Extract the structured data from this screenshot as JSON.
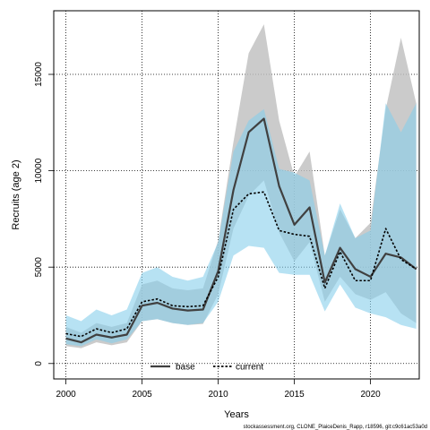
{
  "chart_data": {
    "type": "line",
    "xlabel": "Years",
    "ylabel": "Recruits (age 2)",
    "xlim": [
      1999.2,
      2023.2
    ],
    "ylim": [
      -800,
      18300
    ],
    "x_ticks": [
      "2000",
      "2005",
      "2010",
      "2015",
      "2020"
    ],
    "x_tick_values": [
      2000,
      2005,
      2010,
      2015,
      2020
    ],
    "y_ticks": [
      "0",
      "5000",
      "10000",
      "15000"
    ],
    "y_tick_values": [
      0,
      5000,
      10000,
      15000
    ],
    "grid": true,
    "legend_position": "bottom-center",
    "footer": "stockassessment.org, CLONE_PlaiceDenis_Rapp, r18596, git:c9c61ac53a0d",
    "years": [
      2000,
      2001,
      2002,
      2003,
      2004,
      2005,
      2006,
      2007,
      2008,
      2009,
      2010,
      2011,
      2012,
      2013,
      2014,
      2015,
      2016,
      2017,
      2018,
      2019,
      2020,
      2021,
      2022,
      2023
    ],
    "series": [
      {
        "name": "base",
        "color": "#404040",
        "band_color": "#bebebe",
        "line_style": "solid",
        "values": [
          1300,
          1100,
          1500,
          1350,
          1500,
          3000,
          3150,
          2850,
          2750,
          2800,
          4800,
          9000,
          12000,
          12700,
          9200,
          7200,
          8100,
          4200,
          6000,
          4900,
          4500,
          5700,
          5500,
          4900
        ],
        "lower": [
          900,
          800,
          1100,
          950,
          1100,
          2200,
          2300,
          2100,
          2000,
          2050,
          3600,
          7000,
          8700,
          9500,
          6800,
          5300,
          6300,
          3200,
          4500,
          3600,
          3300,
          3700,
          2600,
          2100
        ],
        "upper": [
          1900,
          1600,
          2100,
          1900,
          2100,
          4100,
          4300,
          3900,
          3800,
          3900,
          6400,
          11500,
          16100,
          17600,
          12600,
          9700,
          11000,
          5600,
          8000,
          6500,
          7300,
          13200,
          16900,
          13500
        ]
      },
      {
        "name": "current",
        "color": "#000000",
        "band_color": "#87ceeb",
        "line_style": "dotted",
        "values": [
          1550,
          1400,
          1800,
          1600,
          1800,
          3200,
          3350,
          3000,
          2950,
          3000,
          4500,
          8000,
          8800,
          8900,
          6900,
          6700,
          6600,
          3900,
          5800,
          4300,
          4300,
          7000,
          5400,
          4900
        ],
        "lower": [
          1000,
          900,
          1250,
          1050,
          1250,
          2200,
          2300,
          2100,
          2000,
          2100,
          3200,
          5600,
          6100,
          6000,
          4700,
          4600,
          4600,
          2700,
          4100,
          2900,
          2600,
          2400,
          2000,
          1800
        ],
        "upper": [
          2500,
          2200,
          2800,
          2500,
          2800,
          4700,
          5000,
          4500,
          4300,
          4500,
          6300,
          11000,
          12600,
          13200,
          10100,
          9900,
          9500,
          5600,
          8300,
          6500,
          6900,
          13500,
          12000,
          13500
        ]
      }
    ]
  }
}
